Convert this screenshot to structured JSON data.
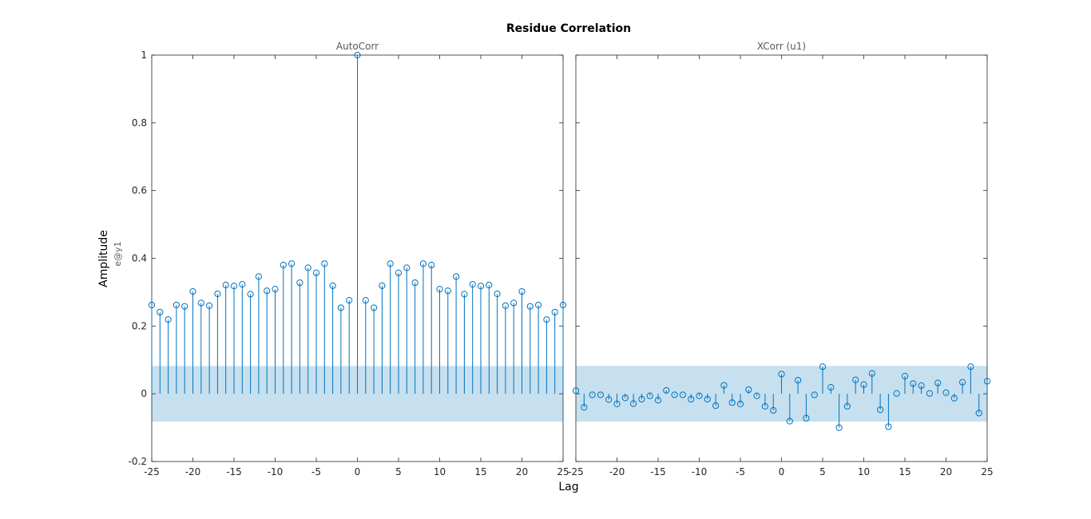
{
  "chart_data": {
    "type": "stem",
    "title": "Residue Correlation",
    "xlabel": "Lag",
    "ylabel": "Amplitude",
    "ylabel_sub": "e@y1",
    "colors": {
      "stem": "#0072bd",
      "band": "#c6e0f0",
      "axes": "#262626"
    },
    "panels": [
      {
        "subtitle": "AutoCorr",
        "xlim": [
          -25,
          25
        ],
        "ylim": [
          -0.2,
          1
        ],
        "xticks": [
          "-25",
          "-20",
          "-15",
          "-10",
          "-5",
          "0",
          "5",
          "10",
          "15",
          "20",
          "25"
        ],
        "yticks": [
          "-0.2",
          "0",
          "0.2",
          "0.4",
          "0.6",
          "0.8",
          "1"
        ],
        "confidence_band": [
          -0.082,
          0.082
        ],
        "x": [
          -25,
          -24,
          -23,
          -22,
          -21,
          -20,
          -19,
          -18,
          -17,
          -16,
          -15,
          -14,
          -13,
          -12,
          -11,
          -10,
          -9,
          -8,
          -7,
          -6,
          -5,
          -4,
          -3,
          -2,
          -1,
          0,
          1,
          2,
          3,
          4,
          5,
          6,
          7,
          8,
          9,
          10,
          11,
          12,
          13,
          14,
          15,
          16,
          17,
          18,
          19,
          20,
          21,
          22,
          23,
          24,
          25
        ],
        "y": [
          0.262,
          0.241,
          0.219,
          0.262,
          0.258,
          0.302,
          0.268,
          0.26,
          0.295,
          0.321,
          0.318,
          0.323,
          0.294,
          0.346,
          0.304,
          0.309,
          0.38,
          0.384,
          0.328,
          0.372,
          0.357,
          0.384,
          0.319,
          0.254,
          0.276,
          1.0,
          0.276,
          0.254,
          0.319,
          0.384,
          0.357,
          0.372,
          0.328,
          0.384,
          0.38,
          0.309,
          0.304,
          0.346,
          0.294,
          0.323,
          0.318,
          0.321,
          0.295,
          0.26,
          0.268,
          0.302,
          0.258,
          0.262,
          0.219,
          0.241,
          0.262
        ]
      },
      {
        "subtitle": "XCorr (u1)",
        "xlim": [
          -25,
          25
        ],
        "ylim": [
          -0.2,
          1
        ],
        "xticks": [
          "-25",
          "-20",
          "-15",
          "-10",
          "-5",
          "0",
          "5",
          "10",
          "15",
          "20",
          "25"
        ],
        "yticks": [],
        "confidence_band": [
          -0.082,
          0.082
        ],
        "x": [
          -25,
          -24,
          -23,
          -22,
          -21,
          -20,
          -19,
          -18,
          -17,
          -16,
          -15,
          -14,
          -13,
          -12,
          -11,
          -10,
          -9,
          -8,
          -7,
          -6,
          -5,
          -4,
          -3,
          -2,
          -1,
          0,
          1,
          2,
          3,
          4,
          5,
          6,
          7,
          8,
          9,
          10,
          11,
          12,
          13,
          14,
          15,
          16,
          17,
          18,
          19,
          20,
          21,
          22,
          23,
          24,
          25
        ],
        "y": [
          0.009,
          -0.04,
          -0.003,
          -0.003,
          -0.017,
          -0.03,
          -0.012,
          -0.029,
          -0.016,
          -0.006,
          -0.019,
          0.01,
          -0.003,
          -0.003,
          -0.016,
          -0.006,
          -0.016,
          -0.035,
          0.025,
          -0.026,
          -0.03,
          0.012,
          -0.006,
          -0.037,
          -0.049,
          0.058,
          -0.081,
          0.04,
          -0.072,
          -0.003,
          0.08,
          0.019,
          -0.1,
          -0.037,
          0.041,
          0.027,
          0.06,
          -0.047,
          -0.097,
          0.001,
          0.052,
          0.03,
          0.024,
          0.001,
          0.032,
          0.003,
          -0.013,
          0.034,
          0.08,
          -0.057,
          0.037
        ]
      }
    ]
  }
}
